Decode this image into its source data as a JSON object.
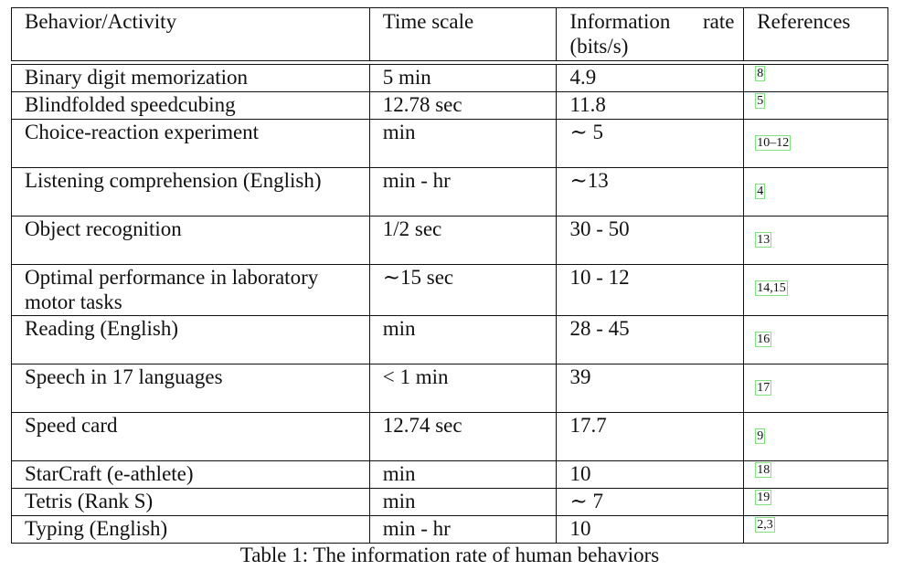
{
  "table": {
    "headers": {
      "behavior": "Behavior/Activity",
      "time_scale": "Time scale",
      "info_rate_line1_a": "Information",
      "info_rate_line1_b": "rate",
      "info_rate_line2": "(bits/s)",
      "references": "References"
    },
    "rows": [
      {
        "behavior": "Binary digit memorization",
        "time_scale": "5 min",
        "rate": "4.9",
        "ref": "8"
      },
      {
        "behavior": "Blindfolded speedcubing",
        "time_scale": "12.78 sec",
        "rate": "11.8",
        "ref": "5"
      },
      {
        "behavior": "Choice-reaction experiment",
        "time_scale": "min",
        "rate": "∼ 5",
        "ref": "10–12"
      },
      {
        "behavior": "Listening comprehension (English)",
        "time_scale": "min - hr",
        "rate": "∼13",
        "ref": "4"
      },
      {
        "behavior": "Object recognition",
        "time_scale": "1/2 sec",
        "rate": "30 - 50",
        "ref": "13"
      },
      {
        "behavior": "Optimal performance in laboratory motor tasks",
        "time_scale": "∼15 sec",
        "rate": "10 - 12",
        "ref": "14,15"
      },
      {
        "behavior": "Reading (English)",
        "time_scale": "min",
        "rate": "28 - 45",
        "ref": "16"
      },
      {
        "behavior": "Speech in 17 languages",
        "time_scale": "< 1 min",
        "rate": "39",
        "ref": "17"
      },
      {
        "behavior": "Speed card",
        "time_scale": "12.74 sec",
        "rate": "17.7",
        "ref": "9"
      },
      {
        "behavior": "StarCraft (e-athlete)",
        "time_scale": "min",
        "rate": "10",
        "ref": "18"
      },
      {
        "behavior": "Tetris (Rank S)",
        "time_scale": "min",
        "rate": "∼ 7",
        "ref": "19"
      },
      {
        "behavior": "Typing (English)",
        "time_scale": "min - hr",
        "rate": "10",
        "ref": "2,3"
      }
    ]
  },
  "caption": "Table 1: The information rate of human behaviors"
}
